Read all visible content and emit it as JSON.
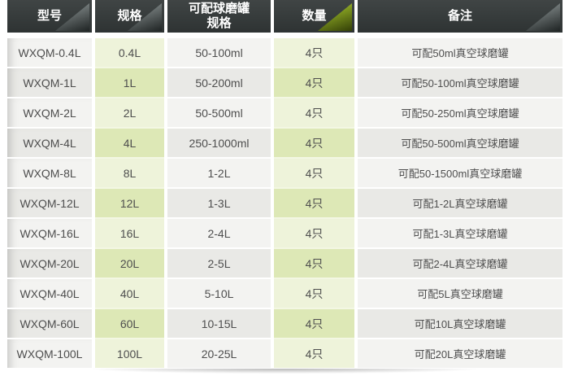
{
  "colors": {
    "header_bg": "#343939",
    "header_text": "#ffffff",
    "triangle_gray_light": "#a6acac",
    "triangle_gray_dark": "#1f2424",
    "triangle_green_light": "#c3d24f",
    "triangle_green_dark": "#333f07",
    "row_light": "#f3f3f1",
    "row_dark": "#e9e9e6",
    "green_cell_light": "#eef3da",
    "green_cell_dark": "#dde8b6",
    "body_text": "#4e4e4e"
  },
  "table": {
    "headers": [
      {
        "line1": "型号",
        "line2": ""
      },
      {
        "line1": "规格",
        "line2": ""
      },
      {
        "line1": "可配球磨罐",
        "line2": "规格"
      },
      {
        "line1": "数量",
        "line2": ""
      },
      {
        "line1": "备注",
        "line2": ""
      }
    ],
    "rows": [
      {
        "model": "WXQM-0.4L",
        "spec": "0.4L",
        "jar": "50-100ml",
        "qty": "4只",
        "remark": "可配50ml真空球磨罐"
      },
      {
        "model": "WXQM-1L",
        "spec": "1L",
        "jar": "50-200ml",
        "qty": "4只",
        "remark": "可配50-100ml真空球磨罐"
      },
      {
        "model": "WXQM-2L",
        "spec": "2L",
        "jar": "50-500ml",
        "qty": "4只",
        "remark": "可配50-250ml真空球磨罐"
      },
      {
        "model": "WXQM-4L",
        "spec": "4L",
        "jar": "250-1000ml",
        "qty": "4只",
        "remark": "可配50-500ml真空球磨罐"
      },
      {
        "model": "WXQM-8L",
        "spec": "8L",
        "jar": "1-2L",
        "qty": "4只",
        "remark": "可配50-1500ml真空球磨罐"
      },
      {
        "model": "WXQM-12L",
        "spec": "12L",
        "jar": "1-3L",
        "qty": "4只",
        "remark": "可配1-2L真空球磨罐"
      },
      {
        "model": "WXQM-16L",
        "spec": "16L",
        "jar": "2-4L",
        "qty": "4只",
        "remark": "可配1-3L真空球磨罐"
      },
      {
        "model": "WXQM-20L",
        "spec": "20L",
        "jar": "2-5L",
        "qty": "4只",
        "remark": "可配2-4L真空球磨罐"
      },
      {
        "model": "WXQM-40L",
        "spec": "40L",
        "jar": "5-10L",
        "qty": "4只",
        "remark": "可配5L真空球磨罐"
      },
      {
        "model": "WXQM-60L",
        "spec": "60L",
        "jar": "10-15L",
        "qty": "4只",
        "remark": "可配10L真空球磨罐"
      },
      {
        "model": "WXQM-100L",
        "spec": "100L",
        "jar": "20-25L",
        "qty": "4只",
        "remark": "可配20L真空球磨罐"
      }
    ]
  },
  "chart_data": {
    "type": "table",
    "title": "",
    "columns": [
      "型号",
      "规格",
      "可配球磨罐规格",
      "数量",
      "备注"
    ],
    "rows": [
      [
        "WXQM-0.4L",
        "0.4L",
        "50-100ml",
        "4只",
        "可配50ml真空球磨罐"
      ],
      [
        "WXQM-1L",
        "1L",
        "50-200ml",
        "4只",
        "可配50-100ml真空球磨罐"
      ],
      [
        "WXQM-2L",
        "2L",
        "50-500ml",
        "4只",
        "可配50-250ml真空球磨罐"
      ],
      [
        "WXQM-4L",
        "4L",
        "250-1000ml",
        "4只",
        "可配50-500ml真空球磨罐"
      ],
      [
        "WXQM-8L",
        "8L",
        "1-2L",
        "4只",
        "可配50-1500ml真空球磨罐"
      ],
      [
        "WXQM-12L",
        "12L",
        "1-3L",
        "4只",
        "可配1-2L真空球磨罐"
      ],
      [
        "WXQM-16L",
        "16L",
        "2-4L",
        "4只",
        "可配1-3L真空球磨罐"
      ],
      [
        "WXQM-20L",
        "20L",
        "2-5L",
        "4只",
        "可配2-4L真空球磨罐"
      ],
      [
        "WXQM-40L",
        "40L",
        "5-10L",
        "4只",
        "可配5L真空球磨罐"
      ],
      [
        "WXQM-60L",
        "60L",
        "10-15L",
        "4只",
        "可配10L真空球磨罐"
      ],
      [
        "WXQM-100L",
        "100L",
        "20-25L",
        "4只",
        "可配20L真空球磨罐"
      ]
    ]
  }
}
